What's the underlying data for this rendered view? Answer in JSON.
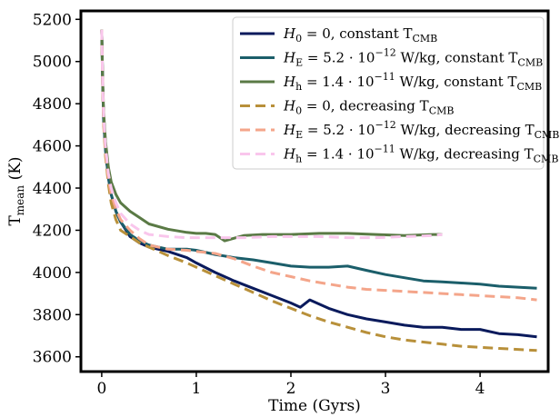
{
  "chart_data": {
    "type": "line",
    "xlabel": "Time (Gyrs)",
    "ylabel": {
      "main": "T",
      "sub": "mean",
      "unit": " (K)"
    },
    "xlim": [
      -0.22,
      4.72
    ],
    "ylim": [
      3530,
      5240
    ],
    "xticks": [
      0,
      1,
      2,
      3,
      4
    ],
    "yticks": [
      3600,
      3800,
      4000,
      4200,
      4400,
      4600,
      4800,
      5000,
      5200
    ],
    "grid": false,
    "legend_position": "top-right",
    "series": [
      {
        "name": "H0 = 0, constant TCMB",
        "legend": {
          "sym": "H",
          "sub": "0",
          "eq": " = 0, constant T",
          "tsub": "CMB"
        },
        "color": "#0a1a5c",
        "dash": "solid",
        "x": [
          0.0,
          0.01,
          0.02,
          0.04,
          0.07,
          0.1,
          0.15,
          0.2,
          0.3,
          0.4,
          0.5,
          0.7,
          0.9,
          1.0,
          1.2,
          1.4,
          1.6,
          1.8,
          2.0,
          2.1,
          2.2,
          2.4,
          2.6,
          2.8,
          3.0,
          3.2,
          3.4,
          3.6,
          3.8,
          4.0,
          4.2,
          4.4,
          4.6
        ],
        "y": [
          5150,
          4900,
          4720,
          4580,
          4450,
          4370,
          4290,
          4240,
          4170,
          4140,
          4120,
          4100,
          4070,
          4045,
          4000,
          3960,
          3925,
          3890,
          3855,
          3835,
          3870,
          3830,
          3800,
          3780,
          3765,
          3750,
          3740,
          3740,
          3730,
          3730,
          3710,
          3705,
          3695
        ]
      },
      {
        "name": "HE = 5.2·10^-12 W/kg, constant TCMB",
        "legend": {
          "sym": "H",
          "sub": "E",
          "eq": " = 5.2 · 10",
          "sup": "−12",
          "rest": " W/kg, constant T",
          "tsub": "CMB"
        },
        "color": "#1b5e6a",
        "dash": "solid",
        "x": [
          0.0,
          0.01,
          0.02,
          0.04,
          0.07,
          0.1,
          0.15,
          0.2,
          0.3,
          0.4,
          0.5,
          0.7,
          0.9,
          1.0,
          1.2,
          1.4,
          1.6,
          1.8,
          2.0,
          2.2,
          2.4,
          2.6,
          2.8,
          3.0,
          3.2,
          3.4,
          3.6,
          3.8,
          4.0,
          4.2,
          4.4,
          4.6
        ],
        "y": [
          5150,
          4900,
          4720,
          4580,
          4450,
          4370,
          4290,
          4240,
          4180,
          4150,
          4130,
          4110,
          4110,
          4105,
          4085,
          4070,
          4060,
          4045,
          4030,
          4025,
          4025,
          4030,
          4010,
          3990,
          3975,
          3960,
          3955,
          3950,
          3945,
          3935,
          3930,
          3925
        ]
      },
      {
        "name": "Hh = 1.4·10^-11 W/kg, constant TCMB",
        "legend": {
          "sym": "H",
          "sub": "h",
          "eq": " = 1.4 · 10",
          "sup": "−11",
          "rest": " W/kg, constant T",
          "tsub": "CMB"
        },
        "color": "#5a7a45",
        "dash": "solid",
        "x": [
          0.0,
          0.01,
          0.02,
          0.04,
          0.07,
          0.1,
          0.15,
          0.2,
          0.3,
          0.4,
          0.5,
          0.7,
          0.9,
          1.0,
          1.1,
          1.2,
          1.3,
          1.5,
          1.7,
          2.0,
          2.3,
          2.6,
          2.9,
          3.2,
          3.5,
          3.6
        ],
        "y": [
          5150,
          4920,
          4760,
          4620,
          4500,
          4430,
          4370,
          4330,
          4290,
          4260,
          4230,
          4205,
          4190,
          4185,
          4185,
          4180,
          4150,
          4175,
          4180,
          4180,
          4185,
          4185,
          4180,
          4175,
          4180,
          4180
        ]
      },
      {
        "name": "H0 = 0, decreasing TCMB",
        "legend": {
          "sym": "H",
          "sub": "0",
          "eq": " = 0, decreasing T",
          "tsub": "CMB"
        },
        "color": "#b8903a",
        "dash": "dashed",
        "x": [
          0.0,
          0.01,
          0.02,
          0.04,
          0.07,
          0.1,
          0.15,
          0.2,
          0.3,
          0.4,
          0.5,
          0.7,
          0.9,
          1.0,
          1.2,
          1.4,
          1.6,
          1.8,
          2.0,
          2.2,
          2.4,
          2.6,
          2.8,
          3.0,
          3.2,
          3.4,
          3.6,
          3.8,
          4.0,
          4.2,
          4.4,
          4.6
        ],
        "y": [
          5150,
          4880,
          4700,
          4550,
          4420,
          4330,
          4250,
          4200,
          4170,
          4140,
          4120,
          4080,
          4045,
          4025,
          3985,
          3945,
          3905,
          3865,
          3830,
          3795,
          3765,
          3740,
          3715,
          3695,
          3680,
          3670,
          3660,
          3650,
          3645,
          3640,
          3635,
          3630
        ]
      },
      {
        "name": "HE = 5.2·10^-12 W/kg, decreasing TCMB",
        "legend": {
          "sym": "H",
          "sub": "E",
          "eq": " = 5.2 · 10",
          "sup": "−12",
          "rest": " W/kg, decreasing T",
          "tsub": "CMB"
        },
        "color": "#f4a58a",
        "dash": "dashed",
        "x": [
          0.0,
          0.01,
          0.02,
          0.04,
          0.07,
          0.1,
          0.15,
          0.2,
          0.3,
          0.4,
          0.5,
          0.7,
          0.9,
          1.0,
          1.2,
          1.4,
          1.6,
          1.8,
          2.0,
          2.2,
          2.4,
          2.6,
          2.8,
          3.0,
          3.2,
          3.4,
          3.6,
          3.8,
          4.0,
          4.2,
          4.4,
          4.6
        ],
        "y": [
          5150,
          4890,
          4710,
          4570,
          4440,
          4370,
          4300,
          4250,
          4200,
          4160,
          4130,
          4110,
          4105,
          4100,
          4090,
          4065,
          4030,
          4000,
          3980,
          3960,
          3945,
          3930,
          3920,
          3915,
          3910,
          3905,
          3900,
          3895,
          3890,
          3885,
          3880,
          3870
        ]
      },
      {
        "name": "Hh = 1.4·10^-11 W/kg, decreasing TCMB",
        "legend": {
          "sym": "H",
          "sub": "h",
          "eq": " = 1.4 · 10",
          "sup": "−11",
          "rest": " W/kg,  decreasing T",
          "tsub": "CMB"
        },
        "color": "#f9c6ec",
        "dash": "dashed",
        "x": [
          0.0,
          0.01,
          0.02,
          0.04,
          0.07,
          0.1,
          0.15,
          0.2,
          0.3,
          0.4,
          0.5,
          0.7,
          0.9,
          1.0,
          1.2,
          1.5,
          1.8,
          2.0,
          2.3,
          2.6,
          2.9,
          3.2,
          3.5,
          3.6
        ],
        "y": [
          5150,
          4900,
          4740,
          4600,
          4470,
          4400,
          4330,
          4280,
          4230,
          4200,
          4180,
          4170,
          4165,
          4165,
          4165,
          4165,
          4170,
          4170,
          4170,
          4165,
          4165,
          4170,
          4175,
          4180
        ]
      }
    ]
  }
}
